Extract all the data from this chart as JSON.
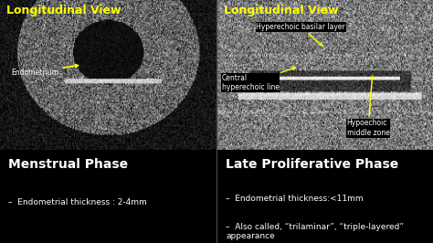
{
  "fig_width": 4.74,
  "fig_height": 2.66,
  "dpi": 100,
  "bg_color": "#000000",
  "title_color": "#ffff00",
  "title_left": "Longitudinal View",
  "title_right": "Longitudinal View",
  "phase_left": "Menstrual Phase",
  "phase_right": "Late Proliferative Phase",
  "bullet_left": [
    "Endometrial thickness : 2-4mm"
  ],
  "bullet_right": [
    "Endometrial thickness:<11mm",
    "Also called, “trilaminar”, “triple-layered”\nappearance"
  ],
  "label_left_endometrium": "Endometrium",
  "label_right_central": "Central\nhyperechoic line",
  "label_right_hypo": "Hypoechoic\nmiddle zone",
  "label_right_basal": "Hyperechoic basiIar layer",
  "arrow_color": "#ffff00",
  "label_bg_color": "#000000",
  "label_text_color": "#ffffff",
  "title_fontsize": 9,
  "phase_fontsize": 10,
  "bullet_fontsize": 6.5,
  "label_fontsize": 5.5
}
